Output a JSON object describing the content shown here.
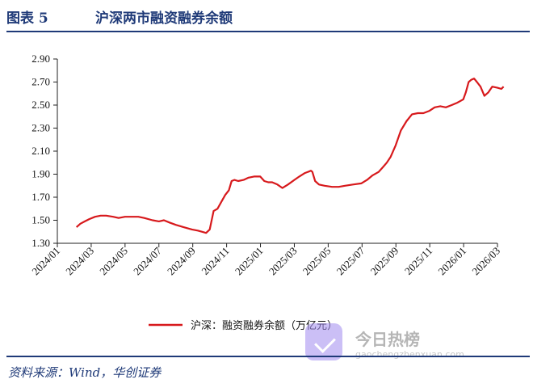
{
  "figure": {
    "label": "图表 5",
    "title": "沪深两市融资融券余额"
  },
  "source_note": "资料来源：Wind，华创证券",
  "watermark": {
    "name": "今日热榜",
    "domain": "gaochengzhenxuan.com"
  },
  "colors": {
    "line": "#d7191c",
    "accent": "#1f3a78"
  },
  "chart_data": {
    "type": "line",
    "xlabel": "",
    "ylabel": "",
    "ylim": [
      1.3,
      2.9
    ],
    "yticks": [
      "1.30",
      "1.50",
      "1.70",
      "1.90",
      "2.10",
      "2.30",
      "2.50",
      "2.70",
      "2.90"
    ],
    "xticks": [
      "2024/01",
      "2024/03",
      "2024/05",
      "2024/07",
      "2024/09",
      "2024/11",
      "2025/01",
      "2025/03",
      "2025/05",
      "2025/07",
      "2025/09",
      "2025/11",
      "2026/01",
      "2026/03"
    ],
    "xlim": [
      "2024/01",
      "2026/03"
    ],
    "legend": "bottom-center",
    "grid": false,
    "series": [
      {
        "name": "沪深：融资融券余额（万亿元）",
        "color": "#d7191c",
        "x": [
          "2024-02-05",
          "2024-02-12",
          "2024-02-20",
          "2024-02-28",
          "2024-03-08",
          "2024-03-18",
          "2024-03-28",
          "2024-04-10",
          "2024-04-20",
          "2024-05-01",
          "2024-05-15",
          "2024-05-25",
          "2024-06-05",
          "2024-06-20",
          "2024-07-01",
          "2024-07-10",
          "2024-07-20",
          "2024-08-01",
          "2024-08-15",
          "2024-08-30",
          "2024-09-10",
          "2024-09-18",
          "2024-09-25",
          "2024-10-01",
          "2024-10-08",
          "2024-10-15",
          "2024-10-22",
          "2024-10-29",
          "2024-11-05",
          "2024-11-10",
          "2024-11-15",
          "2024-11-22",
          "2024-12-01",
          "2024-12-10",
          "2024-12-20",
          "2024-12-31",
          "2025-01-08",
          "2025-01-15",
          "2025-01-22",
          "2025-02-01",
          "2025-02-10",
          "2025-02-20",
          "2025-03-01",
          "2025-03-10",
          "2025-03-20",
          "2025-03-31",
          "2025-04-03",
          "2025-04-08",
          "2025-04-15",
          "2025-04-25",
          "2025-05-08",
          "2025-05-20",
          "2025-06-01",
          "2025-06-15",
          "2025-06-30",
          "2025-07-10",
          "2025-07-20",
          "2025-07-31",
          "2025-08-08",
          "2025-08-15",
          "2025-08-22",
          "2025-08-31",
          "2025-09-10",
          "2025-09-20",
          "2025-09-30",
          "2025-10-10",
          "2025-10-20",
          "2025-10-31",
          "2025-11-10",
          "2025-11-20",
          "2025-11-30",
          "2025-12-10",
          "2025-12-20",
          "2025-12-31",
          "2026-01-05",
          "2026-01-10",
          "2026-01-15",
          "2026-01-20",
          "2026-01-25",
          "2026-02-01",
          "2026-02-08",
          "2026-02-15",
          "2026-02-22",
          "2026-03-01",
          "2026-03-08",
          "2026-03-12"
        ],
        "values": [
          1.44,
          1.47,
          1.49,
          1.51,
          1.53,
          1.54,
          1.54,
          1.53,
          1.52,
          1.53,
          1.53,
          1.53,
          1.52,
          1.5,
          1.49,
          1.5,
          1.48,
          1.46,
          1.44,
          1.42,
          1.41,
          1.4,
          1.39,
          1.42,
          1.58,
          1.6,
          1.66,
          1.72,
          1.76,
          1.84,
          1.85,
          1.84,
          1.85,
          1.87,
          1.88,
          1.88,
          1.84,
          1.83,
          1.83,
          1.81,
          1.78,
          1.81,
          1.85,
          1.88,
          1.91,
          1.93,
          1.92,
          1.84,
          1.81,
          1.8,
          1.79,
          1.79,
          1.8,
          1.81,
          1.82,
          1.85,
          1.89,
          1.92,
          1.96,
          2.0,
          2.05,
          2.15,
          2.28,
          2.36,
          2.42,
          2.43,
          2.43,
          2.45,
          2.48,
          2.49,
          2.48,
          2.5,
          2.52,
          2.55,
          2.61,
          2.7,
          2.72,
          2.73,
          2.7,
          2.66,
          2.58,
          2.61,
          2.66,
          2.65,
          2.64,
          2.66
        ]
      }
    ]
  }
}
